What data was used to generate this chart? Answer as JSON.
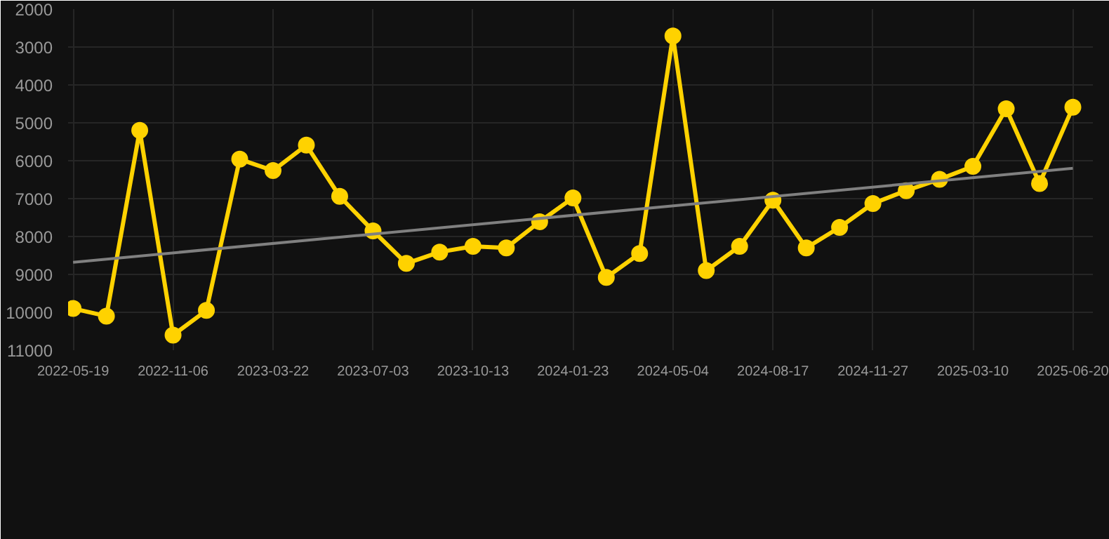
{
  "chart_data": {
    "type": "line",
    "categories": [
      "2022-05-19",
      null,
      null,
      "2022-11-06",
      null,
      null,
      "2023-03-22",
      null,
      null,
      "2023-07-03",
      null,
      null,
      "2023-10-13",
      null,
      null,
      "2024-01-23",
      null,
      null,
      "2024-05-04",
      null,
      null,
      "2024-08-17",
      null,
      null,
      "2024-11-27",
      null,
      null,
      "2025-03-10",
      null,
      null,
      "2025-06-20"
    ],
    "series": [
      {
        "color": "#ffd200",
        "marker": "circle",
        "values": [
          9900,
          10100,
          5200,
          10600,
          9950,
          5960,
          6260,
          5590,
          6940,
          7850,
          8710,
          8410,
          8260,
          8300,
          7610,
          6980,
          9080,
          8450,
          2710,
          8900,
          8260,
          7040,
          8300,
          7760,
          7130,
          6790,
          6490,
          6150,
          4630,
          6600,
          4590
        ]
      },
      {
        "type": "line",
        "color": "#808080",
        "marker": "none",
        "values": [
          8680,
          null,
          null,
          null,
          null,
          null,
          null,
          null,
          null,
          null,
          null,
          null,
          null,
          null,
          null,
          null,
          null,
          null,
          null,
          null,
          null,
          null,
          null,
          null,
          null,
          null,
          null,
          null,
          null,
          null,
          6200
        ]
      }
    ],
    "ylim": [
      11000,
      2000
    ],
    "yticks": [
      2000,
      3000,
      4000,
      5000,
      6000,
      7000,
      8000,
      9000,
      10000,
      11000
    ],
    "grid": true,
    "line_style": "solid"
  }
}
